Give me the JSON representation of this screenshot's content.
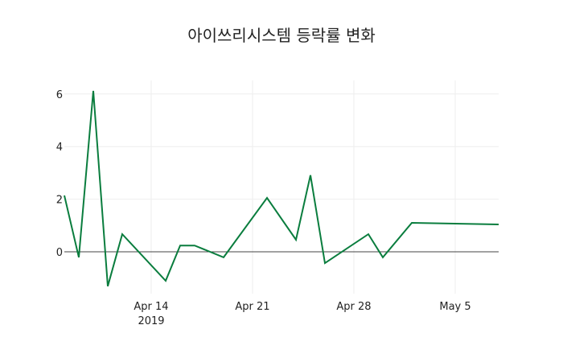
{
  "chart_data": {
    "type": "line",
    "title": "아이쓰리시스템 등락률 변화",
    "xlabel": "",
    "ylabel": "",
    "x": [
      "2019-04-08",
      "2019-04-09",
      "2019-04-10",
      "2019-04-11",
      "2019-04-12",
      "2019-04-15",
      "2019-04-16",
      "2019-04-17",
      "2019-04-19",
      "2019-04-22",
      "2019-04-24",
      "2019-04-25",
      "2019-04-26",
      "2019-04-29",
      "2019-04-30",
      "2019-05-02",
      "2019-05-08"
    ],
    "series": [
      {
        "name": "등락률",
        "color": "#0a7d3e",
        "values": [
          2.14,
          -0.21,
          6.12,
          -1.31,
          0.67,
          -1.1,
          0.24,
          0.24,
          -0.21,
          2.05,
          0.46,
          2.91,
          -0.43,
          0.67,
          -0.21,
          1.1,
          1.04
        ]
      }
    ],
    "x_ticks": [
      {
        "date": "2019-04-14",
        "label": "Apr 14",
        "sublabel": "2019"
      },
      {
        "date": "2019-04-21",
        "label": "Apr 21"
      },
      {
        "date": "2019-04-28",
        "label": "Apr 28"
      },
      {
        "date": "2019-05-05",
        "label": "May 5"
      }
    ],
    "y_ticks": [
      0,
      2,
      4,
      6
    ],
    "ylim": [
      -1.5,
      6.5
    ],
    "grid": true,
    "legend": false
  }
}
